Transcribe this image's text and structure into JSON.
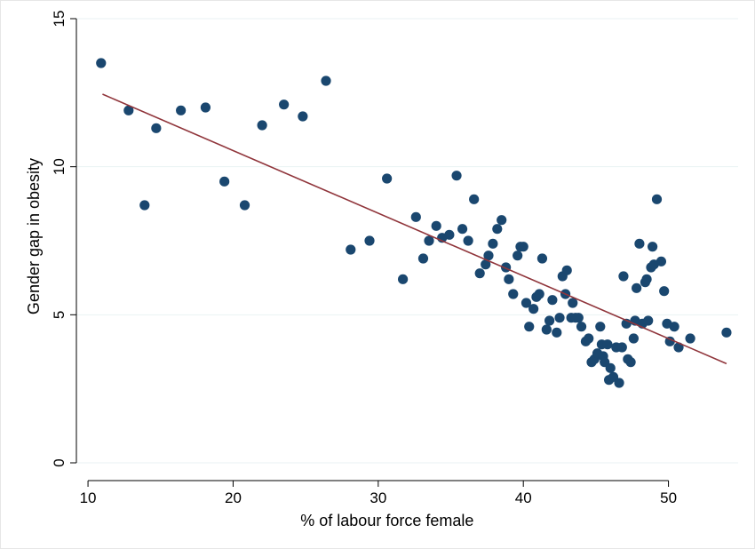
{
  "chart_data": {
    "type": "scatter",
    "xlabel": "% of labour force female",
    "ylabel": "Gender gap in obesity",
    "xlim": [
      9.2,
      54.8
    ],
    "ylim": [
      -0.6,
      15.3
    ],
    "xticks": [
      10,
      20,
      30,
      40,
      50
    ],
    "yticks": [
      0,
      5,
      10,
      15
    ],
    "grid": "horizontal",
    "colors": {
      "points": "#1a476f",
      "fit_line": "#90353b",
      "grid": "#eaf2f3"
    },
    "fit_line": {
      "x": [
        11,
        54
      ],
      "y": [
        12.45,
        3.35
      ]
    },
    "points": [
      {
        "x": 10.9,
        "y": 13.5
      },
      {
        "x": 12.8,
        "y": 11.9
      },
      {
        "x": 13.9,
        "y": 8.7
      },
      {
        "x": 14.7,
        "y": 11.3
      },
      {
        "x": 16.4,
        "y": 11.9
      },
      {
        "x": 18.1,
        "y": 12.0
      },
      {
        "x": 19.4,
        "y": 9.5
      },
      {
        "x": 20.8,
        "y": 8.7
      },
      {
        "x": 22.0,
        "y": 11.4
      },
      {
        "x": 23.5,
        "y": 12.1
      },
      {
        "x": 24.8,
        "y": 11.7
      },
      {
        "x": 26.4,
        "y": 12.9
      },
      {
        "x": 28.1,
        "y": 7.2
      },
      {
        "x": 29.4,
        "y": 7.5
      },
      {
        "x": 30.6,
        "y": 9.6
      },
      {
        "x": 31.7,
        "y": 6.2
      },
      {
        "x": 32.6,
        "y": 8.3
      },
      {
        "x": 33.1,
        "y": 6.9
      },
      {
        "x": 33.5,
        "y": 7.5
      },
      {
        "x": 34.0,
        "y": 8.0
      },
      {
        "x": 34.4,
        "y": 7.6
      },
      {
        "x": 34.9,
        "y": 7.7
      },
      {
        "x": 35.4,
        "y": 9.7
      },
      {
        "x": 35.8,
        "y": 7.9
      },
      {
        "x": 36.2,
        "y": 7.5
      },
      {
        "x": 36.6,
        "y": 8.9
      },
      {
        "x": 37.0,
        "y": 6.4
      },
      {
        "x": 37.4,
        "y": 6.7
      },
      {
        "x": 37.6,
        "y": 7.0
      },
      {
        "x": 37.9,
        "y": 7.4
      },
      {
        "x": 38.2,
        "y": 7.9
      },
      {
        "x": 38.5,
        "y": 8.2
      },
      {
        "x": 38.8,
        "y": 6.6
      },
      {
        "x": 39.0,
        "y": 6.2
      },
      {
        "x": 39.3,
        "y": 5.7
      },
      {
        "x": 39.6,
        "y": 7.0
      },
      {
        "x": 39.8,
        "y": 7.3
      },
      {
        "x": 40.0,
        "y": 7.3
      },
      {
        "x": 40.2,
        "y": 5.4
      },
      {
        "x": 40.4,
        "y": 4.6
      },
      {
        "x": 40.7,
        "y": 5.2
      },
      {
        "x": 40.9,
        "y": 5.6
      },
      {
        "x": 41.1,
        "y": 5.7
      },
      {
        "x": 41.3,
        "y": 6.9
      },
      {
        "x": 41.6,
        "y": 4.5
      },
      {
        "x": 41.8,
        "y": 4.8
      },
      {
        "x": 42.0,
        "y": 5.5
      },
      {
        "x": 42.3,
        "y": 4.4
      },
      {
        "x": 42.5,
        "y": 4.9
      },
      {
        "x": 42.7,
        "y": 6.3
      },
      {
        "x": 42.9,
        "y": 5.7
      },
      {
        "x": 43.0,
        "y": 6.5
      },
      {
        "x": 43.3,
        "y": 4.9
      },
      {
        "x": 43.4,
        "y": 5.4
      },
      {
        "x": 43.6,
        "y": 4.9
      },
      {
        "x": 43.8,
        "y": 4.9
      },
      {
        "x": 44.0,
        "y": 4.6
      },
      {
        "x": 44.3,
        "y": 4.1
      },
      {
        "x": 44.5,
        "y": 4.2
      },
      {
        "x": 44.7,
        "y": 3.4
      },
      {
        "x": 44.9,
        "y": 3.5
      },
      {
        "x": 45.1,
        "y": 3.7
      },
      {
        "x": 45.3,
        "y": 4.6
      },
      {
        "x": 45.4,
        "y": 4.0
      },
      {
        "x": 45.5,
        "y": 3.6
      },
      {
        "x": 45.6,
        "y": 3.4
      },
      {
        "x": 45.8,
        "y": 4.0
      },
      {
        "x": 45.9,
        "y": 2.8
      },
      {
        "x": 46.0,
        "y": 3.2
      },
      {
        "x": 46.2,
        "y": 2.9
      },
      {
        "x": 46.4,
        "y": 3.9
      },
      {
        "x": 46.6,
        "y": 2.7
      },
      {
        "x": 46.8,
        "y": 3.9
      },
      {
        "x": 46.9,
        "y": 6.3
      },
      {
        "x": 47.1,
        "y": 4.7
      },
      {
        "x": 47.2,
        "y": 3.5
      },
      {
        "x": 47.4,
        "y": 3.4
      },
      {
        "x": 47.6,
        "y": 4.2
      },
      {
        "x": 47.7,
        "y": 4.8
      },
      {
        "x": 47.8,
        "y": 5.9
      },
      {
        "x": 48.0,
        "y": 7.4
      },
      {
        "x": 48.2,
        "y": 4.7
      },
      {
        "x": 48.4,
        "y": 6.1
      },
      {
        "x": 48.5,
        "y": 6.2
      },
      {
        "x": 48.6,
        "y": 4.8
      },
      {
        "x": 48.8,
        "y": 6.6
      },
      {
        "x": 48.9,
        "y": 7.3
      },
      {
        "x": 49.0,
        "y": 6.7
      },
      {
        "x": 49.2,
        "y": 8.9
      },
      {
        "x": 49.5,
        "y": 6.8
      },
      {
        "x": 49.7,
        "y": 5.8
      },
      {
        "x": 49.9,
        "y": 4.7
      },
      {
        "x": 50.1,
        "y": 4.1
      },
      {
        "x": 50.4,
        "y": 4.6
      },
      {
        "x": 50.7,
        "y": 3.9
      },
      {
        "x": 51.5,
        "y": 4.2
      },
      {
        "x": 54.0,
        "y": 4.4
      }
    ]
  }
}
